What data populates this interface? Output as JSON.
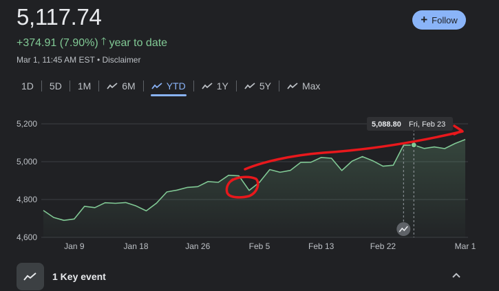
{
  "quote": {
    "price": "5,117.74",
    "change_text": "+374.91 (7.90%)",
    "change_period": "year to date",
    "meta": "Mar 1, 11:45 AM EST • Disclaimer"
  },
  "follow_button": {
    "label": "Follow",
    "icon": "plus-icon",
    "color": "#8ab4f8"
  },
  "tabs": [
    {
      "label": "1D",
      "icon": ""
    },
    {
      "label": "5D",
      "icon": ""
    },
    {
      "label": "1M",
      "icon": ""
    },
    {
      "label": "6M",
      "icon": "trend-icon"
    },
    {
      "label": "YTD",
      "icon": "trend-icon",
      "active": true
    },
    {
      "label": "1Y",
      "icon": "trend-icon"
    },
    {
      "label": "5Y",
      "icon": "trend-icon"
    },
    {
      "label": "Max",
      "icon": "trend-icon"
    }
  ],
  "chart_data": {
    "type": "area",
    "y_ticks": [
      "5,200",
      "5,000",
      "4,800",
      "4,600"
    ],
    "y_tick_values": [
      5200,
      5000,
      4800,
      4600
    ],
    "ylim": [
      4600,
      5220
    ],
    "x_ticks": [
      "Jan 9",
      "Jan 18",
      "Jan 26",
      "Feb 5",
      "Feb 13",
      "Feb 22",
      "Mar 1"
    ],
    "grid": true,
    "line_color": "#81c995",
    "series": [
      {
        "values": [
          4742,
          4705,
          4690,
          4697,
          4764,
          4757,
          4783,
          4780,
          4784,
          4766,
          4740,
          4781,
          4840,
          4850,
          4864,
          4868,
          4895,
          4891,
          4928,
          4925,
          4848,
          4891,
          4958,
          4944,
          4954,
          4996,
          4997,
          5022,
          5018,
          4953,
          5003,
          5027,
          5005,
          4976,
          4981,
          5087,
          5088,
          5070,
          5078,
          5069,
          5096,
          5117
        ]
      }
    ],
    "tooltip": {
      "value": "5,088.80",
      "date": "Fri, Feb 23",
      "index": 36
    },
    "event_index": 35
  },
  "annotations": {
    "color": "#e8181c"
  },
  "key_event": {
    "label": "1 Key event",
    "icon": "trend-icon"
  }
}
